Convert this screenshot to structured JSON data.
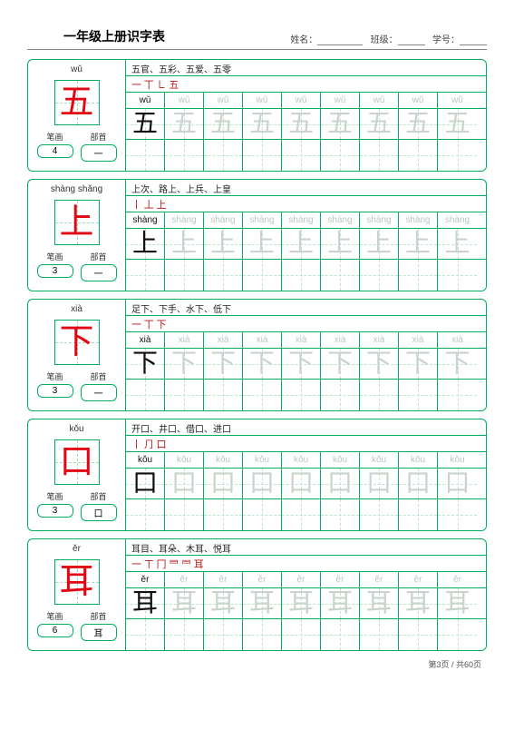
{
  "header": {
    "title": "一年级上册识字表",
    "name_label": "姓名：",
    "class_label": "班级：",
    "id_label": "学号："
  },
  "info_labels": {
    "strokes": "笔画",
    "radical": "部首"
  },
  "footer": "第3页 / 共60页",
  "grid_cols": 9,
  "entries": [
    {
      "pinyin_top": "wǔ",
      "char": "五",
      "strokes_count": "4",
      "radical": "一",
      "words": "五官、五彩、五爱、五零",
      "stroke_seq": "一  丅  ㇗  五",
      "pinyin_main": "wǔ",
      "pinyin_faded": "wǔ"
    },
    {
      "pinyin_top": "shàng  shǎng",
      "char": "上",
      "strokes_count": "3",
      "radical": "一",
      "words": "上次、路上、上兵、上皇",
      "stroke_seq": "丨  丄  上",
      "pinyin_main": "shàng",
      "pinyin_faded": "shàng"
    },
    {
      "pinyin_top": "xià",
      "char": "下",
      "strokes_count": "3",
      "radical": "一",
      "words": "足下、下手、水下、低下",
      "stroke_seq": "一  丅  下",
      "pinyin_main": "xià",
      "pinyin_faded": "xià"
    },
    {
      "pinyin_top": "kǒu",
      "char": "口",
      "strokes_count": "3",
      "radical": "口",
      "words": "开口、井口、借口、进口",
      "stroke_seq": "丨  ⺆  口",
      "pinyin_main": "kǒu",
      "pinyin_faded": "kǒu"
    },
    {
      "pinyin_top": "ěr",
      "char": "耳",
      "strokes_count": "6",
      "radical": "耳",
      "words": "耳目、耳朵、木耳、悦耳",
      "stroke_seq": "一  ㄒ  冂  ⺜  ⺜  耳",
      "pinyin_main": "ěr",
      "pinyin_faded": "ěr"
    }
  ]
}
